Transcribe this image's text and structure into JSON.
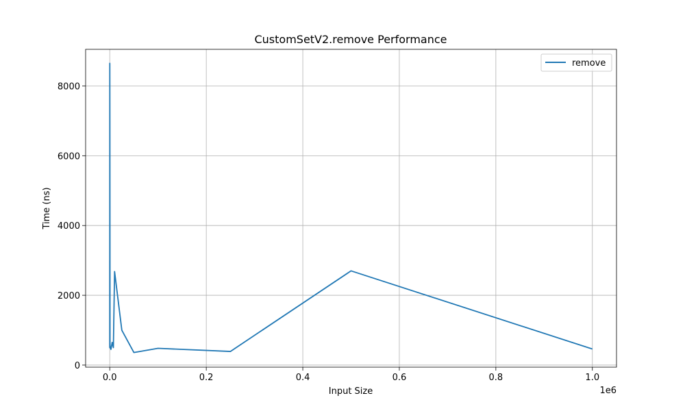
{
  "chart_data": {
    "type": "line",
    "title": "CustomSetV2.remove Performance",
    "xlabel": "Input Size",
    "ylabel": "Time (ns)",
    "x_offset_label": "1e6",
    "xlim": [
      -50000,
      1050000
    ],
    "ylim": [
      -60,
      9050
    ],
    "xticks": [
      0,
      200000,
      400000,
      600000,
      800000,
      1000000
    ],
    "xtick_labels": [
      "0.0",
      "0.2",
      "0.4",
      "0.6",
      "0.8",
      "1.0"
    ],
    "yticks": [
      0,
      2000,
      4000,
      6000,
      8000
    ],
    "ytick_labels": [
      "0",
      "2000",
      "4000",
      "6000",
      "8000"
    ],
    "grid": true,
    "legend_position": "upper right",
    "series": [
      {
        "name": "remove",
        "color": "#1f77b4",
        "x": [
          10,
          50,
          100,
          250,
          500,
          1000,
          2500,
          5000,
          7500,
          10000,
          25000,
          50000,
          100000,
          250000,
          500000,
          1000000
        ],
        "y": [
          3000,
          500,
          8650,
          7000,
          600,
          500,
          450,
          650,
          500,
          2680,
          1000,
          360,
          480,
          390,
          2700,
          460
        ]
      }
    ]
  }
}
